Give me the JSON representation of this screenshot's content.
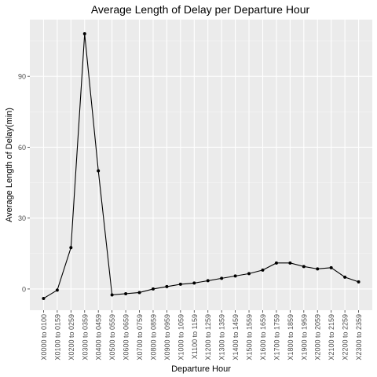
{
  "chart_data": {
    "type": "line",
    "title": "Average Length of Delay per Departure Hour",
    "xlabel": "Departure Hour",
    "ylabel": "Average Length of Delay(min)",
    "categories": [
      "X0000 to 0100",
      "X0100 to 0159",
      "X0200 to 0259",
      "X0300 to 0359",
      "X0400 to 0459",
      "X0500 to 0559",
      "X0600 to 0659",
      "X0700 to 0759",
      "X0800 to 0859",
      "X0900 to 0959",
      "X1000 to 1059",
      "X1100 to 1159",
      "X1200 to 1259",
      "X1300 to 1359",
      "X1400 to 1459",
      "X1500 to 1559",
      "X1600 to 1659",
      "X1700 to 1759",
      "X1800 to 1859",
      "X1900 to 1959",
      "X2000 to 2059",
      "X2100 to 2159",
      "X2200 to 2259",
      "X2300 to 2359"
    ],
    "series": [
      {
        "values": [
          -4,
          -0.5,
          17.5,
          108,
          50,
          -2.5,
          -2,
          -1.5,
          0,
          1,
          2,
          2.5,
          3.5,
          4.5,
          5.5,
          6.5,
          8,
          11,
          11,
          9.5,
          8.5,
          9,
          5,
          3
        ]
      }
    ],
    "yticks": [
      0,
      30,
      60,
      90
    ],
    "ytick_labels": [
      "0",
      "30",
      "60",
      "90"
    ],
    "ylim": [
      -9,
      114
    ],
    "grid": true,
    "legend": "none",
    "colors": {
      "panel": "#ebebeb",
      "grid": "#ffffff",
      "line": "#000000",
      "text": "#4d4d4d",
      "title": "#000000"
    }
  }
}
